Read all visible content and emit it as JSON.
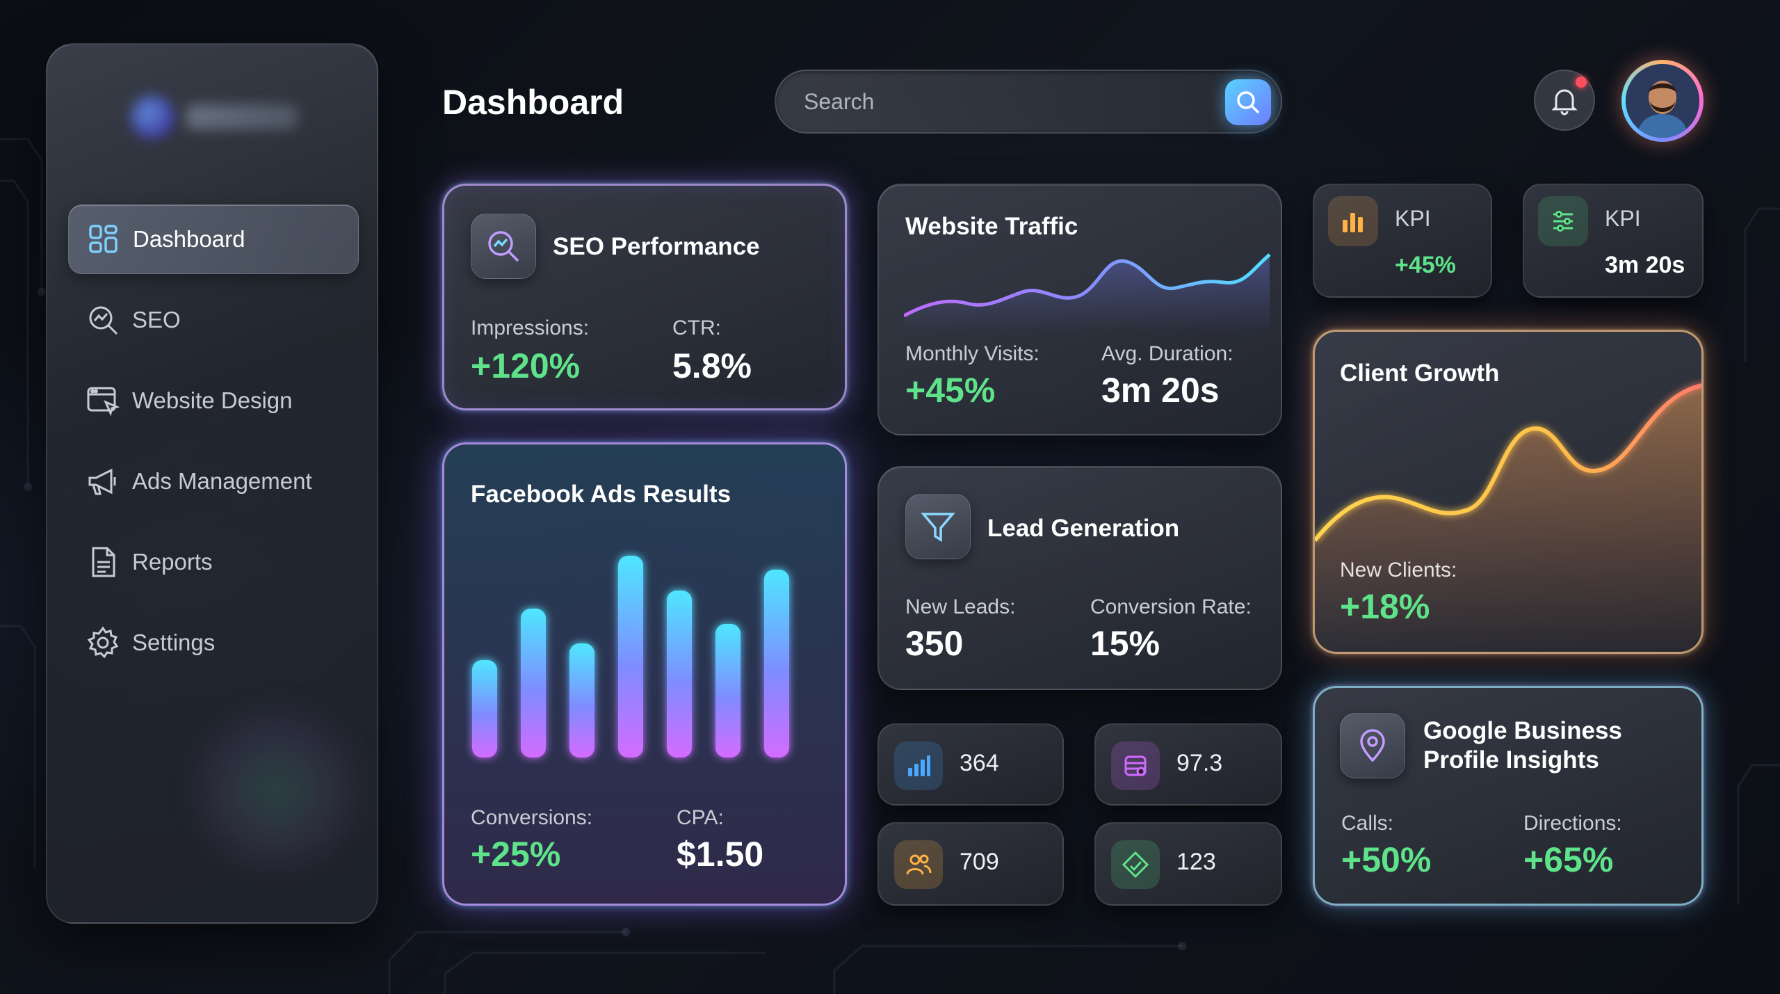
{
  "sidebar": {
    "items": [
      {
        "label": "Dashboard",
        "icon": "grid-icon",
        "active": true
      },
      {
        "label": "SEO",
        "icon": "seo-analytics-icon"
      },
      {
        "label": "Website Design",
        "icon": "browser-cursor-icon"
      },
      {
        "label": "Ads Management",
        "icon": "megaphone-icon"
      },
      {
        "label": "Reports",
        "icon": "document-icon"
      },
      {
        "label": "Settings",
        "icon": "gear-icon"
      }
    ]
  },
  "header": {
    "title": "Dashboard",
    "search_placeholder": "Search"
  },
  "seo": {
    "title": "SEO Performance",
    "impressions_label": "Impressions:",
    "impressions_value": "+120%",
    "ctr_label": "CTR:",
    "ctr_value": "5.8%"
  },
  "traffic": {
    "title": "Website Traffic",
    "visits_label": "Monthly Visits:",
    "visits_value": "+45%",
    "duration_label": "Avg. Duration:",
    "duration_value": "3m 20s"
  },
  "kpis": [
    {
      "label": "KPI",
      "value": "+45%",
      "icon": "bar-chart-icon"
    },
    {
      "label": "KPI",
      "value": "3m 20s",
      "icon": "sliders-icon"
    }
  ],
  "facebook": {
    "title": "Facebook Ads Results",
    "conversions_label": "Conversions:",
    "conversions_value": "+25%",
    "cpa_label": "CPA:",
    "cpa_value": "$1.50"
  },
  "leads": {
    "title": "Lead Generation",
    "new_leads_label": "New Leads:",
    "new_leads_value": "350",
    "conversion_label": "Conversion Rate:",
    "conversion_value": "15%"
  },
  "client_growth": {
    "title": "Client Growth",
    "label": "New Clients:",
    "value": "+18%"
  },
  "stats": [
    {
      "value": "364",
      "icon": "signal-bars-icon",
      "color": "#4aa8ff"
    },
    {
      "value": "97.3",
      "icon": "database-icon",
      "color": "#d06bff"
    },
    {
      "value": "709",
      "icon": "users-icon",
      "color": "#ffb347"
    },
    {
      "value": "123",
      "icon": "tag-icon",
      "color": "#5fe38a"
    }
  ],
  "google": {
    "title_line1": "Google Business",
    "title_line2": "Profile Insights",
    "calls_label": "Calls:",
    "calls_value": "+50%",
    "directions_label": "Directions:",
    "directions_value": "+65%"
  },
  "colors": {
    "positive": "#5fe38a",
    "accent_blue": "#5ad2ff",
    "accent_purple": "#b07bff",
    "accent_warm": "#ffb36a"
  }
}
